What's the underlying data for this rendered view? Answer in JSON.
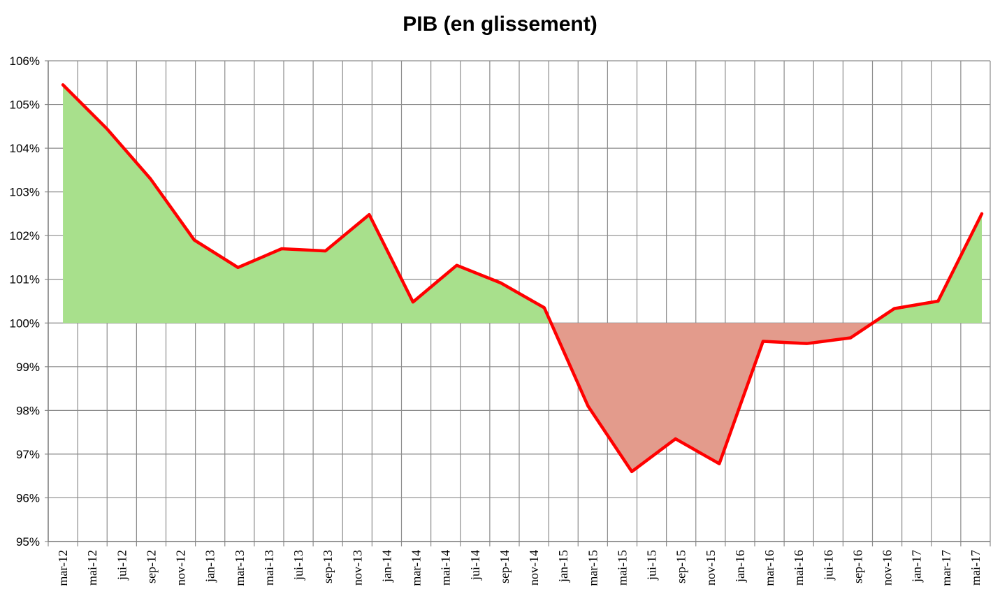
{
  "chart_data": {
    "type": "area",
    "title": "PIB (en glissement)",
    "xlabel": "",
    "ylabel": "",
    "baseline": 100,
    "ylim": [
      95,
      106
    ],
    "y_ticks": [
      "95%",
      "96%",
      "97%",
      "98%",
      "99%",
      "100%",
      "101%",
      "102%",
      "103%",
      "104%",
      "105%",
      "106%"
    ],
    "x_tick_labels": [
      "mar-12",
      "mai-12",
      "jui-12",
      "sep-12",
      "nov-12",
      "jan-13",
      "mar-13",
      "mai-13",
      "jui-13",
      "sep-13",
      "nov-13",
      "jan-14",
      "mar-14",
      "mai-14",
      "jui-14",
      "sep-14",
      "nov-14",
      "jan-15",
      "mar-15",
      "mai-15",
      "jui-15",
      "sep-15",
      "nov-15",
      "jan-16",
      "mar-16",
      "mai-16",
      "jui-16",
      "sep-16",
      "nov-16",
      "jan-17",
      "mar-17",
      "mai-17"
    ],
    "grid": true,
    "legend": "none",
    "colors": {
      "line": "#ff0000",
      "positive_fill": "#a8e08c",
      "negative_fill": "#e39b8c",
      "grid": "#8c8c8c"
    },
    "series": [
      {
        "x": [
          "mar-12",
          "jun-12",
          "sep-12",
          "dec-12",
          "mar-13",
          "jun-13",
          "sep-13",
          "dec-13",
          "mar-14",
          "jun-14",
          "sep-14",
          "dec-14",
          "mar-15",
          "jun-15",
          "sep-15",
          "dec-15",
          "mar-16",
          "jun-16",
          "sep-16",
          "dec-16",
          "mar-17",
          "jun-17"
        ],
        "values": [
          105.45,
          104.45,
          103.3,
          101.9,
          101.27,
          101.7,
          101.65,
          102.48,
          100.48,
          101.32,
          100.92,
          100.35,
          98.1,
          96.6,
          97.35,
          96.78,
          99.58,
          99.53,
          99.66,
          100.33,
          100.5,
          102.5
        ]
      }
    ]
  }
}
